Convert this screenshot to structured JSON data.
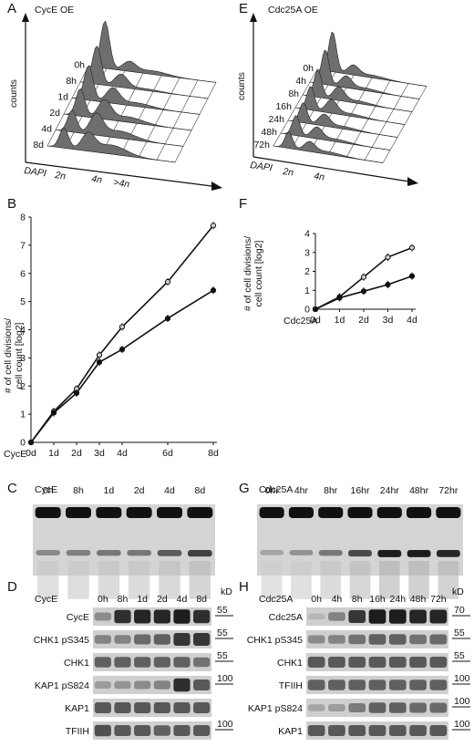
{
  "panelA": {
    "letter": "A",
    "title": "CycE OE",
    "ylabel": "counts",
    "xlabel": "DAPI",
    "xticks": [
      "2n",
      "4n",
      ">4n"
    ],
    "rows": [
      "0h",
      "8h",
      "1d",
      "2d",
      "4d",
      "8d"
    ]
  },
  "panelE": {
    "letter": "E",
    "title": "Cdc25A OE",
    "ylabel": "counts",
    "xlabel": "DAPI",
    "xticks": [
      "2n",
      "4n"
    ],
    "rows": [
      "0h",
      "4h",
      "8h",
      "16h",
      "24h",
      "48h",
      "72h"
    ]
  },
  "panelB": {
    "letter": "B"
  },
  "panelF": {
    "letter": "F"
  },
  "panelC": {
    "letter": "C",
    "label": "CycE",
    "lanes": [
      "0h",
      "8h",
      "1d",
      "2d",
      "4d",
      "8d"
    ],
    "intensity": [
      0.35,
      0.4,
      0.45,
      0.45,
      0.6,
      0.75
    ]
  },
  "panelG": {
    "letter": "G",
    "label": "Cdc25A",
    "lanes": [
      "0hr",
      "4hr",
      "8hr",
      "16hr",
      "24hr",
      "48hr",
      "72hr"
    ],
    "intensity": [
      0.2,
      0.3,
      0.45,
      0.7,
      0.95,
      0.95,
      0.9
    ]
  },
  "panelD": {
    "letter": "D",
    "label": "CycE",
    "lanes": [
      "0h",
      "8h",
      "1d",
      "2d",
      "4d",
      "8d"
    ],
    "kd_label": "kD",
    "rows": [
      {
        "name": "CycE",
        "kd": "55",
        "levels": [
          0.3,
          0.85,
          0.9,
          0.9,
          0.95,
          0.85
        ]
      },
      {
        "name": "CHK1 pS345",
        "kd": "55",
        "levels": [
          0.35,
          0.35,
          0.5,
          0.55,
          0.8,
          0.8
        ]
      },
      {
        "name": "CHK1",
        "kd": "55",
        "levels": [
          0.55,
          0.55,
          0.55,
          0.55,
          0.55,
          0.45
        ]
      },
      {
        "name": "KAP1 pS824",
        "kd": "100",
        "levels": [
          0.2,
          0.25,
          0.3,
          0.35,
          0.85,
          0.6
        ]
      },
      {
        "name": "KAP1",
        "kd": "",
        "levels": [
          0.6,
          0.6,
          0.6,
          0.6,
          0.6,
          0.6
        ]
      },
      {
        "name": "TFIIH",
        "kd": "100",
        "levels": [
          0.65,
          0.6,
          0.6,
          0.55,
          0.6,
          0.6
        ]
      }
    ]
  },
  "panelH": {
    "letter": "H",
    "label": "Cdc25A",
    "lanes": [
      "0h",
      "4h",
      "8h",
      "16h",
      "24h",
      "48h",
      "72h"
    ],
    "kd_label": "kD",
    "rows": [
      {
        "name": "Cdc25A",
        "kd": "70",
        "levels": [
          0.05,
          0.35,
          0.8,
          0.95,
          0.95,
          0.9,
          0.9
        ]
      },
      {
        "name": "CHK1 pS345",
        "kd": "55",
        "levels": [
          0.3,
          0.35,
          0.45,
          0.55,
          0.55,
          0.45,
          0.5
        ]
      },
      {
        "name": "CHK1",
        "kd": "55",
        "levels": [
          0.6,
          0.6,
          0.6,
          0.6,
          0.6,
          0.6,
          0.6
        ]
      },
      {
        "name": "TFIIH",
        "kd": "100",
        "levels": [
          0.55,
          0.55,
          0.55,
          0.55,
          0.55,
          0.55,
          0.55
        ]
      },
      {
        "name": "KAP1 pS824",
        "kd": "100",
        "levels": [
          0.15,
          0.2,
          0.4,
          0.55,
          0.55,
          0.5,
          0.5
        ]
      },
      {
        "name": "KAP1",
        "kd": "100",
        "levels": [
          0.6,
          0.6,
          0.6,
          0.6,
          0.6,
          0.6,
          0.6
        ]
      }
    ]
  },
  "chart_data": [
    {
      "type": "line",
      "panel": "B",
      "ylabel": "# of cell divisions/ cell count [log2]",
      "xlabel": "CycE",
      "categories": [
        "0d",
        "1d",
        "2d",
        "3d",
        "4d",
        "6d",
        "8d"
      ],
      "x": [
        0,
        1,
        2,
        3,
        4,
        6,
        8
      ],
      "ylim": [
        0,
        8
      ],
      "yticks": [
        0,
        1,
        2,
        3,
        4,
        5,
        6,
        7,
        8
      ],
      "series": [
        {
          "values": [
            0,
            1.1,
            1.9,
            3.1,
            4.1,
            5.7,
            7.7
          ],
          "marker": "open"
        },
        {
          "values": [
            0,
            1.05,
            1.75,
            2.85,
            3.3,
            4.4,
            5.4
          ],
          "marker": "filled"
        }
      ]
    },
    {
      "type": "line",
      "panel": "F",
      "ylabel": "# of cell divisions/ cell count [log2]",
      "xlabel": "Cdc25A",
      "categories": [
        "0d",
        "1d",
        "2d",
        "3d",
        "4d"
      ],
      "x": [
        0,
        1,
        2,
        3,
        4
      ],
      "ylim": [
        0,
        4
      ],
      "yticks": [
        0,
        1,
        2,
        3,
        4
      ],
      "series": [
        {
          "values": [
            0,
            0.65,
            1.7,
            2.75,
            3.25
          ],
          "marker": "open"
        },
        {
          "values": [
            0,
            0.6,
            0.95,
            1.3,
            1.75
          ],
          "marker": "filled"
        }
      ]
    }
  ]
}
